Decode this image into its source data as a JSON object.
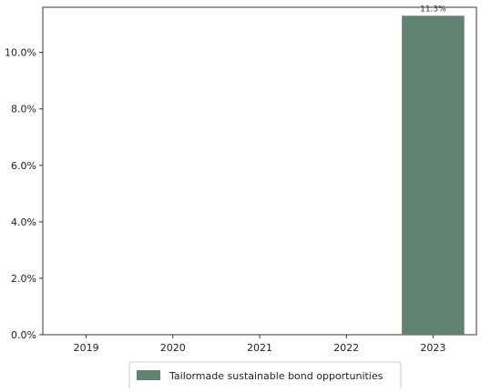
{
  "chart_data": {
    "type": "bar",
    "categories": [
      "2019",
      "2020",
      "2021",
      "2022",
      "2023"
    ],
    "series": [
      {
        "name": "Tailormade sustainable bond opportunities",
        "values": [
          0,
          0,
          0,
          0,
          11.3
        ],
        "color": "#5e8370"
      }
    ],
    "data_labels": [
      "",
      "",
      "",
      "",
      "11.3%"
    ],
    "y_ticks": [
      "0.0%",
      "2.0%",
      "4.0%",
      "6.0%",
      "8.0%",
      "10.0%"
    ],
    "ylim": [
      0,
      11.6
    ],
    "title": "",
    "xlabel": "",
    "ylabel": "",
    "grid": false,
    "legend_position": "bottom-center"
  }
}
